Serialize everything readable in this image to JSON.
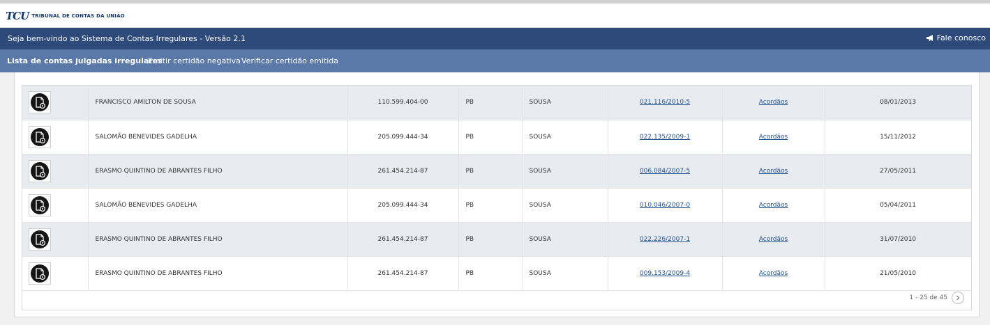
{
  "brand": {
    "mark": "TCU",
    "name": "TRIBUNAL DE CONTAS DA UNIÃO"
  },
  "header": {
    "welcome": "Seja bem-vindo ao Sistema de Contas Irregulares - Versão 2.1",
    "contact_label": "Fale conosco",
    "contact_icon": "megaphone-icon"
  },
  "nav": {
    "items": [
      "Lista de contas julgadas irregulares",
      "Emitir certidão negativa",
      "Verificar certidão emitida"
    ]
  },
  "table": {
    "icon": "document-gear-icon",
    "rows": [
      {
        "name": "FRANCISCO AMILTON DE SOUSA",
        "cpf": "110.599.404-00",
        "uf": "PB",
        "city": "SOUSA",
        "process": "021.116/2010-5",
        "link": "Acordãos",
        "date": "08/01/2013"
      },
      {
        "name": "SALOMÃO BENEVIDES GADELHA",
        "cpf": "205.099.444-34",
        "uf": "PB",
        "city": "SOUSA",
        "process": "022.135/2009-1",
        "link": "Acordãos",
        "date": "15/11/2012"
      },
      {
        "name": "ERASMO QUINTINO DE ABRANTES FILHO",
        "cpf": "261.454.214-87",
        "uf": "PB",
        "city": "SOUSA",
        "process": "006.084/2007-5",
        "link": "Acordãos",
        "date": "27/05/2011"
      },
      {
        "name": "SALOMÃO BENEVIDES GADELHA",
        "cpf": "205.099.444-34",
        "uf": "PB",
        "city": "SOUSA",
        "process": "010.046/2007-0",
        "link": "Acordãos",
        "date": "05/04/2011"
      },
      {
        "name": "ERASMO QUINTINO DE ABRANTES FILHO",
        "cpf": "261.454.214-87",
        "uf": "PB",
        "city": "SOUSA",
        "process": "022.226/2007-1",
        "link": "Acordãos",
        "date": "31/07/2010"
      },
      {
        "name": "ERASMO QUINTINO DE ABRANTES FILHO",
        "cpf": "261.454.214-87",
        "uf": "PB",
        "city": "SOUSA",
        "process": "009.153/2009-4",
        "link": "Acordãos",
        "date": "21/05/2010"
      }
    ]
  },
  "pagination": {
    "summary": "1 - 25 de 45",
    "next_icon": "chevron-right-icon"
  },
  "colors": {
    "header_bg": "#2d4a7b",
    "nav_bg": "#5a78a8",
    "row_alt": "#e8ebf0",
    "link": "#23528f"
  }
}
